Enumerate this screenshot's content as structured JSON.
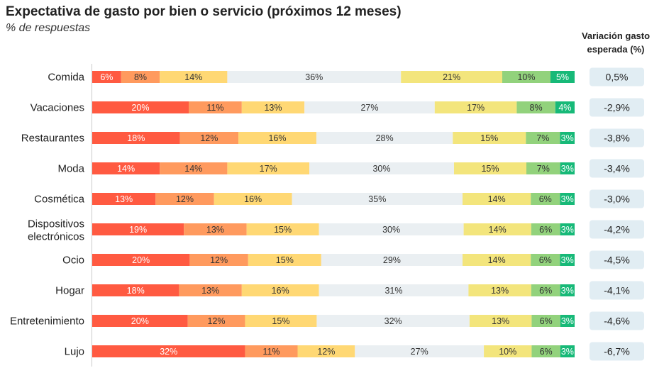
{
  "title": "Expectativa de gasto por bien o servicio (próximos 12 meses)",
  "subtitle": "% de respuestas",
  "side_column": {
    "header": "Variación gasto esperada (%)"
  },
  "colors": {
    "segments": [
      "#ff5a41",
      "#ff9a5e",
      "#ffd874",
      "#eaeff2",
      "#f3e57c",
      "#92d27c",
      "#17b978"
    ],
    "segment_text": [
      "#ffffff",
      "#333333",
      "#333333",
      "#333333",
      "#333333",
      "#333333",
      "#ffffff"
    ],
    "badge_bg": "#e1edf3",
    "axis_line": "#cccccc"
  },
  "chart_data": {
    "type": "bar",
    "orientation": "horizontal",
    "stacked": true,
    "value_unit": "%",
    "categories": [
      "Comida",
      "Vacaciones",
      "Restaurantes",
      "Moda",
      "Cosmética",
      "Dispositivos electrónicos",
      "Ocio",
      "Hogar",
      "Entretenimiento",
      "Lujo"
    ],
    "segment_values": [
      [
        6,
        8,
        14,
        36,
        21,
        10,
        5
      ],
      [
        20,
        11,
        13,
        27,
        17,
        8,
        4
      ],
      [
        18,
        12,
        16,
        28,
        15,
        7,
        3
      ],
      [
        14,
        14,
        17,
        30,
        15,
        7,
        3
      ],
      [
        13,
        12,
        16,
        35,
        14,
        6,
        3
      ],
      [
        19,
        13,
        15,
        30,
        14,
        6,
        3
      ],
      [
        20,
        12,
        15,
        29,
        14,
        6,
        3
      ],
      [
        18,
        13,
        16,
        31,
        13,
        6,
        3
      ],
      [
        20,
        12,
        15,
        32,
        13,
        6,
        3
      ],
      [
        32,
        11,
        12,
        27,
        10,
        6,
        3
      ]
    ],
    "variation_labels": [
      "0,5%",
      "-2,9%",
      "-3,8%",
      "-3,4%",
      "-3,0%",
      "-4,2%",
      "-4,5%",
      "-4,1%",
      "-4,6%",
      "-6,7%"
    ],
    "legend": "none",
    "grid": false
  }
}
